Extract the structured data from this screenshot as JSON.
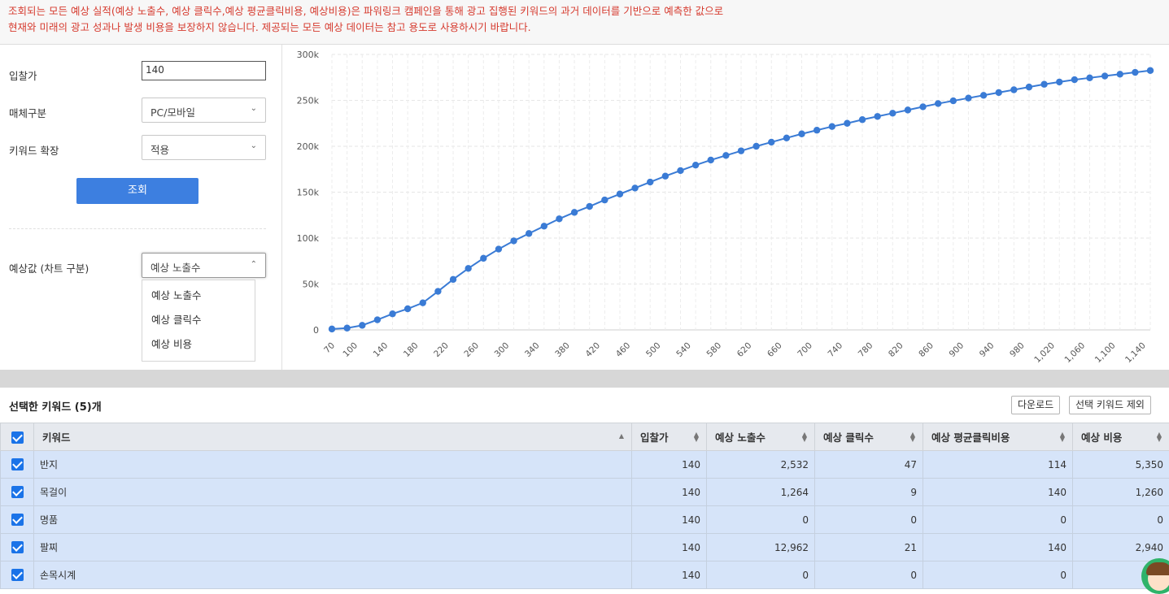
{
  "notice": {
    "line1": "조회되는 모든 예상 실적(예상 노출수, 예상 클릭수,예상 평균클릭비용, 예상비용)은 파워링크 캠페인을 통해 광고 집행된 키워드의 과거 데이터를 기반으로 예측한 값으로",
    "line2": "현재와 미래의 광고 성과나 발생 비용을 보장하지 않습니다. 제공되는 모든 예상 데이터는 참고 용도로 사용하시기 바랍니다."
  },
  "form": {
    "bid_label": "입찰가",
    "bid_value": "140",
    "media_label": "매체구분",
    "media_value": "PC/모바일",
    "expand_label": "키워드 확장",
    "expand_value": "적용",
    "search_button": "조회",
    "metric_label": "예상값 (차트 구분)",
    "metric_value": "예상 노출수",
    "metric_options": [
      "예상 노출수",
      "예상 클릭수",
      "예상 비용"
    ]
  },
  "chart_data": {
    "type": "line",
    "title": "",
    "xlabel": "",
    "ylabel": "",
    "ylim": [
      0,
      300000
    ],
    "yticks": [
      "0",
      "50k",
      "100k",
      "150k",
      "200k",
      "250k",
      "300k"
    ],
    "xticks": [
      "70",
      "100",
      "140",
      "180",
      "220",
      "260",
      "300",
      "340",
      "380",
      "420",
      "460",
      "500",
      "540",
      "580",
      "620",
      "660",
      "700",
      "740",
      "780",
      "820",
      "860",
      "900",
      "940",
      "980",
      "1,020",
      "1,060",
      "1,100",
      "1,140"
    ],
    "x": [
      70,
      90,
      110,
      130,
      150,
      170,
      190,
      210,
      230,
      250,
      270,
      290,
      310,
      330,
      350,
      370,
      390,
      410,
      430,
      450,
      470,
      490,
      510,
      530,
      550,
      570,
      590,
      610,
      630,
      650,
      670,
      690,
      710,
      730,
      750,
      770,
      790,
      810,
      830,
      850,
      870,
      890,
      910,
      930,
      950,
      970,
      990,
      1010,
      1030,
      1050,
      1070,
      1090,
      1110,
      1130,
      1150
    ],
    "values": [
      1000,
      2000,
      5000,
      11000,
      17500,
      23000,
      29500,
      42000,
      55000,
      67000,
      78000,
      88000,
      97000,
      105000,
      113000,
      121000,
      128000,
      134500,
      141500,
      148000,
      154500,
      161000,
      167500,
      173500,
      179500,
      185000,
      190000,
      195000,
      200000,
      204500,
      209000,
      213500,
      217500,
      221500,
      225000,
      229000,
      232500,
      236000,
      239500,
      243000,
      246500,
      249500,
      252500,
      255500,
      258500,
      261500,
      264500,
      267500,
      270000,
      272500,
      274500,
      276500,
      278500,
      280500,
      282500
    ],
    "series_color": "#3a7bd5",
    "grid": true
  },
  "keywords": {
    "title": "선택한 키워드 (5)개",
    "download_button": "다운로드",
    "remove_button": "선택 키워드 제외",
    "columns": [
      "키워드",
      "입찰가",
      "예상 노출수",
      "예상 클릭수",
      "예상 평균클릭비용",
      "예상 비용"
    ],
    "rows": [
      {
        "keyword": "반지",
        "bid": "140",
        "impressions": "2,532",
        "clicks": "47",
        "cpc": "114",
        "cost": "5,350"
      },
      {
        "keyword": "목걸이",
        "bid": "140",
        "impressions": "1,264",
        "clicks": "9",
        "cpc": "140",
        "cost": "1,260"
      },
      {
        "keyword": "명품",
        "bid": "140",
        "impressions": "0",
        "clicks": "0",
        "cpc": "0",
        "cost": "0"
      },
      {
        "keyword": "팔찌",
        "bid": "140",
        "impressions": "12,962",
        "clicks": "21",
        "cpc": "140",
        "cost": "2,940"
      },
      {
        "keyword": "손목시계",
        "bid": "140",
        "impressions": "0",
        "clicks": "0",
        "cpc": "0",
        "cost": ""
      }
    ]
  }
}
